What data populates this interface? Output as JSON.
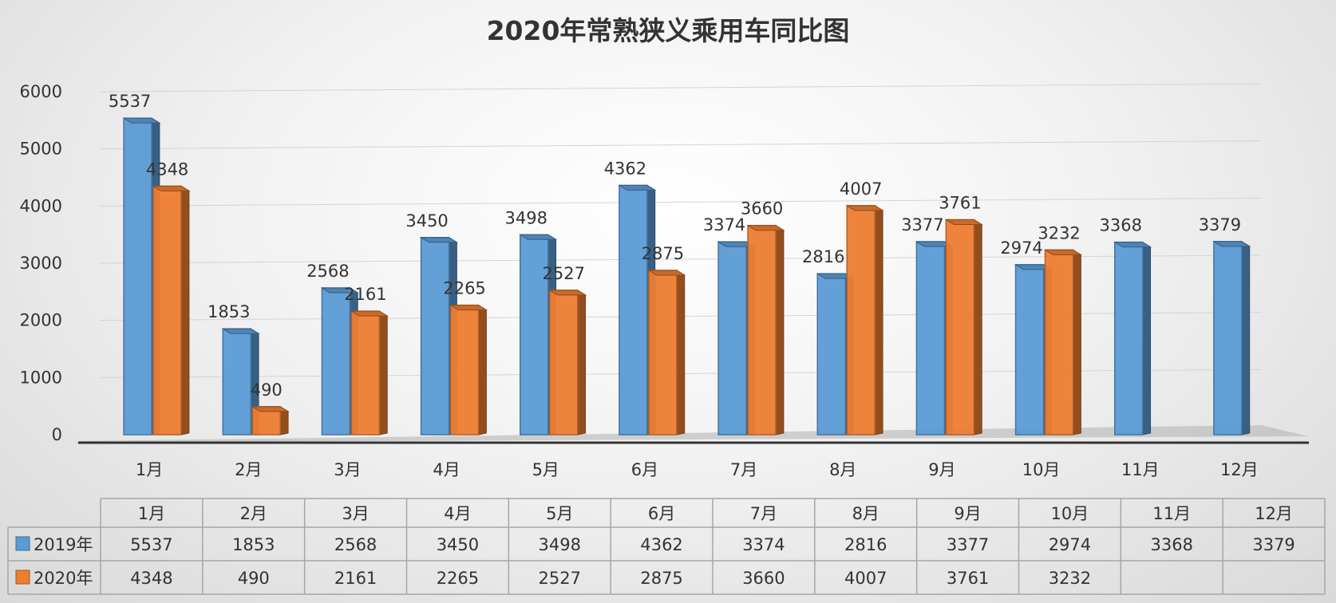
{
  "chart_data": {
    "type": "bar",
    "title": "2020年常熟狭义乘用车同比图",
    "categories": [
      "1月",
      "2月",
      "3月",
      "4月",
      "5月",
      "6月",
      "7月",
      "8月",
      "9月",
      "10月",
      "11月",
      "12月"
    ],
    "series": [
      {
        "name": "2019年",
        "color": "#5b9bd5",
        "values": [
          5537,
          1853,
          2568,
          3450,
          3498,
          4362,
          3374,
          2816,
          3377,
          2974,
          3368,
          3379
        ]
      },
      {
        "name": "2020年",
        "color": "#ed7d31",
        "values": [
          4348,
          490,
          2161,
          2265,
          2527,
          2875,
          3660,
          4007,
          3761,
          3232,
          null,
          null
        ]
      }
    ],
    "ylim": [
      0,
      6000
    ],
    "yticks": [
      0,
      1000,
      2000,
      3000,
      4000,
      5000,
      6000
    ],
    "grid": true,
    "legend": "data-table"
  }
}
